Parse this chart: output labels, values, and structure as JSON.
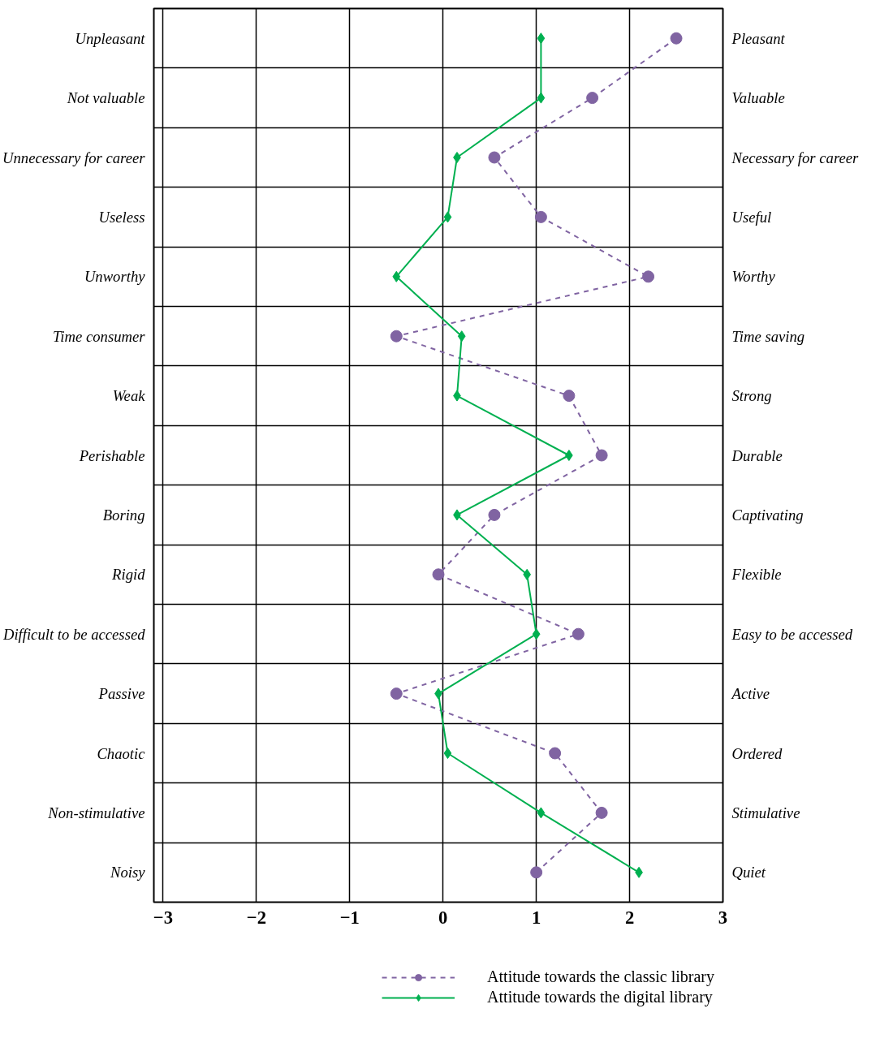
{
  "chart_data": {
    "type": "line",
    "orientation": "horizontal",
    "categories": [
      "Unpleasant",
      "Not valuable",
      "Unnecessary for career",
      "Useless",
      "Unworthy",
      "Time consumer",
      "Weak",
      "Perishable",
      "Boring",
      "Rigid",
      "Difficult to be accessed",
      "Passive",
      "Chaotic",
      "Non-stimulative",
      "Noisy"
    ],
    "y2_categories": [
      "Pleasant",
      "Valuable",
      "Necessary for career",
      "Useful",
      "Worthy",
      "Time saving",
      "Strong",
      "Durable",
      "Captivating",
      "Flexible",
      "Easy to be accessed",
      "Active",
      "Ordered",
      "Stimulative",
      "Quiet"
    ],
    "xlim": [
      -3.1,
      3
    ],
    "xticks": [
      -3,
      -2,
      -1,
      0,
      1,
      2,
      3
    ],
    "grid": true,
    "legend": "bottom right",
    "series": [
      {
        "name": "Attitude towards the classic library",
        "color": "#8064a2",
        "marker": "circle",
        "line_style": "dashed",
        "values": [
          2.5,
          1.6,
          0.55,
          1.05,
          2.2,
          -0.5,
          1.35,
          1.7,
          0.55,
          -0.05,
          1.45,
          -0.5,
          1.2,
          1.7,
          1.0
        ]
      },
      {
        "name": "Attitude towards the digital library",
        "color": "#00b050",
        "marker": "diamond",
        "line_style": "solid",
        "values": [
          1.05,
          1.05,
          0.15,
          0.05,
          -0.5,
          0.2,
          0.15,
          1.35,
          0.15,
          0.9,
          1.0,
          -0.05,
          0.05,
          1.05,
          2.1
        ]
      }
    ]
  }
}
